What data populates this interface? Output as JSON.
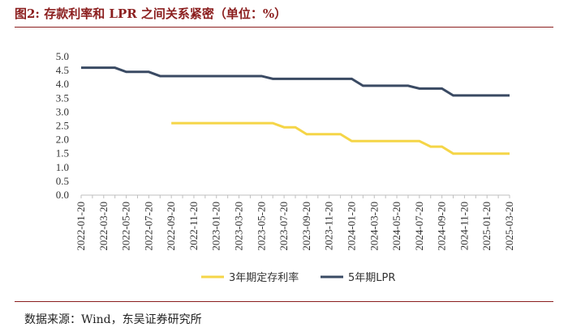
{
  "title": "图2:  存款利率和 LPR 之间关系紧密（单位：%）",
  "source": "数据来源：Wind，东吴证券研究所",
  "chart_data": {
    "type": "line",
    "title": "",
    "xlabel": "",
    "ylabel": "",
    "ylim": [
      0,
      5
    ],
    "yticks": [
      "0.0",
      "0.5",
      "1.0",
      "1.5",
      "2.0",
      "2.5",
      "3.0",
      "3.5",
      "4.0",
      "4.5",
      "5.0"
    ],
    "grid": false,
    "legend": "bottom",
    "x": [
      "2022-01-20",
      "2022-02-20",
      "2022-03-20",
      "2022-04-20",
      "2022-05-20",
      "2022-06-20",
      "2022-07-20",
      "2022-08-20",
      "2022-09-20",
      "2022-10-20",
      "2022-11-20",
      "2022-12-20",
      "2023-01-20",
      "2023-02-20",
      "2023-03-20",
      "2023-04-20",
      "2023-05-20",
      "2023-06-20",
      "2023-07-20",
      "2023-08-20",
      "2023-09-20",
      "2023-10-20",
      "2023-11-20",
      "2023-12-20",
      "2024-01-20",
      "2024-02-20",
      "2024-03-20",
      "2024-04-20",
      "2024-05-20",
      "2024-06-20",
      "2024-07-20",
      "2024-08-20",
      "2024-09-20",
      "2024-10-20",
      "2024-11-20",
      "2024-12-20",
      "2025-01-20",
      "2025-02-20",
      "2025-03-20"
    ],
    "xtick_labels": [
      "2022-01-20",
      "2022-03-20",
      "2022-05-20",
      "2022-07-20",
      "2022-09-20",
      "2022-11-20",
      "2023-01-20",
      "2023-03-20",
      "2023-05-20",
      "2023-07-20",
      "2023-09-20",
      "2023-11-20",
      "2024-01-20",
      "2024-03-20",
      "2024-05-20",
      "2024-07-20",
      "2024-09-20",
      "2024-11-20",
      "2025-01-20",
      "2025-03-20"
    ],
    "series": [
      {
        "name": "3年期定存利率",
        "color": "#F5D547",
        "values": [
          null,
          null,
          null,
          null,
          null,
          null,
          null,
          null,
          2.6,
          2.6,
          2.6,
          2.6,
          2.6,
          2.6,
          2.6,
          2.6,
          2.6,
          2.6,
          2.45,
          2.45,
          2.2,
          2.2,
          2.2,
          2.2,
          1.95,
          1.95,
          1.95,
          1.95,
          1.95,
          1.95,
          1.95,
          1.75,
          1.75,
          1.5,
          1.5,
          1.5,
          1.5,
          1.5,
          1.5
        ]
      },
      {
        "name": "5年期LPR",
        "color": "#3A4A63",
        "values": [
          4.6,
          4.6,
          4.6,
          4.6,
          4.45,
          4.45,
          4.45,
          4.3,
          4.3,
          4.3,
          4.3,
          4.3,
          4.3,
          4.3,
          4.3,
          4.3,
          4.3,
          4.2,
          4.2,
          4.2,
          4.2,
          4.2,
          4.2,
          4.2,
          4.2,
          3.95,
          3.95,
          3.95,
          3.95,
          3.95,
          3.85,
          3.85,
          3.85,
          3.6,
          3.6,
          3.6,
          3.6,
          3.6,
          3.6
        ]
      }
    ]
  }
}
